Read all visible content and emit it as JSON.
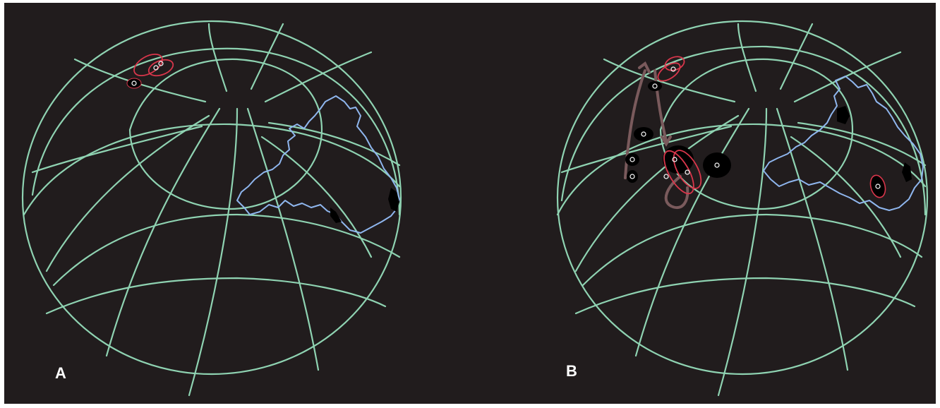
{
  "panels": [
    {
      "label": "A",
      "region_outline": "coastline-outline",
      "pole_markers": 3,
      "migration_arrows": false
    },
    {
      "label": "B",
      "region_outline": "coastline-outline",
      "pole_markers": 10,
      "migration_arrows": true
    }
  ],
  "colors": {
    "background": "#211c1d",
    "graticule": "#8fd3b2",
    "coastline": "#8fb6ee",
    "confidence_ellipse": "#d9364b",
    "arrow": "#7a5a5c",
    "pole_fill": "#000000"
  }
}
